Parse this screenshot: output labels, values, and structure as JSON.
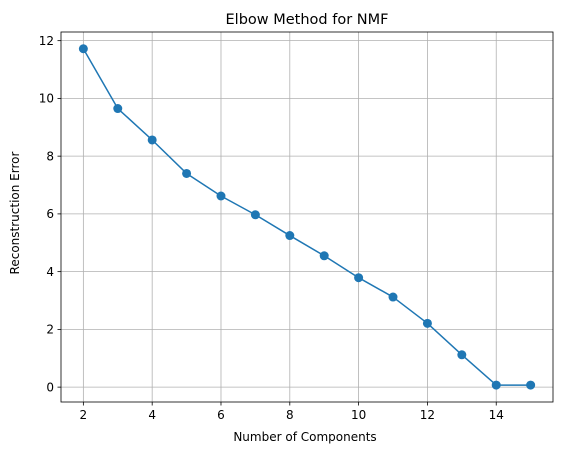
{
  "chart_data": {
    "type": "line",
    "title": "Elbow Method for NMF",
    "xlabel": "Number of Components",
    "ylabel": "Reconstruction Error",
    "x": [
      2,
      3,
      4,
      5,
      6,
      7,
      8,
      9,
      10,
      11,
      12,
      13,
      14,
      15
    ],
    "series": [
      {
        "values": [
          11.72,
          9.65,
          8.56,
          7.4,
          6.62,
          5.97,
          5.25,
          4.55,
          3.79,
          3.12,
          2.21,
          1.12,
          0.07,
          0.07
        ],
        "color": "#1f77b4",
        "marker": "circle"
      }
    ],
    "xlim": [
      1.35,
      15.65
    ],
    "ylim": [
      -0.515,
      12.3
    ],
    "xticks": [
      2,
      4,
      6,
      8,
      10,
      12,
      14
    ],
    "yticks": [
      0,
      2,
      4,
      6,
      8,
      10,
      12
    ],
    "grid": true
  }
}
